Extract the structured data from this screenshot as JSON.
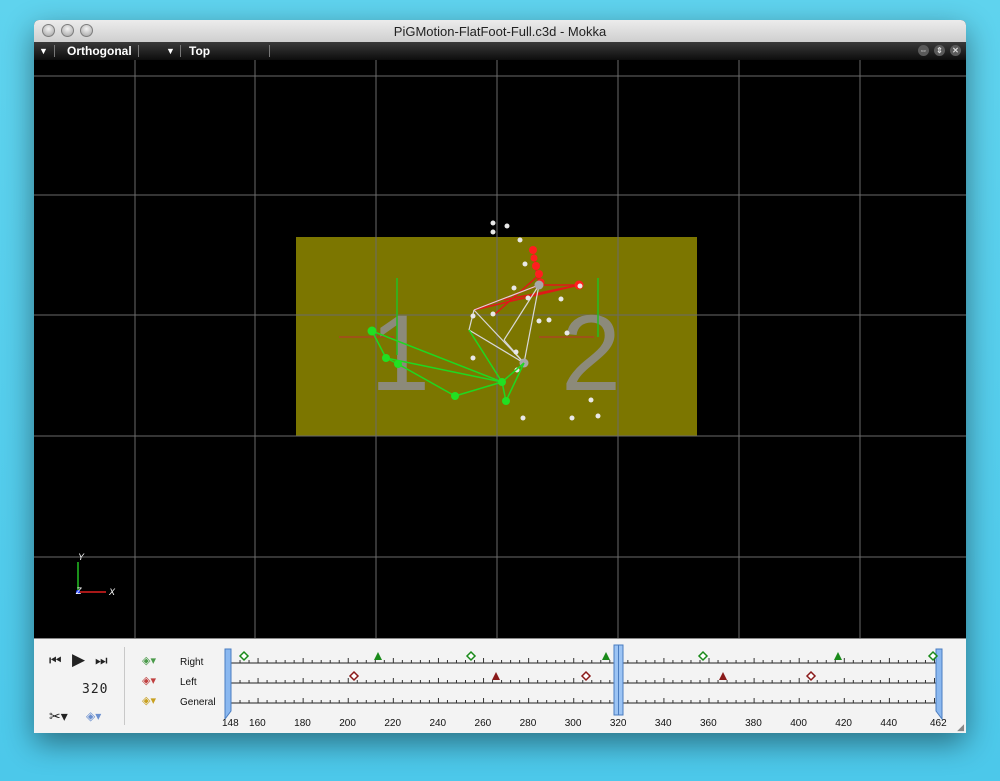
{
  "window": {
    "title": "PiGMotion-FlatFoot-Full.c3d - Mokka"
  },
  "toolbar": {
    "projection": "Orthogonal",
    "view": "Top"
  },
  "viewport": {
    "forceplate_labels": [
      "1",
      "2"
    ],
    "axis_labels": {
      "y": "Y",
      "z": "Z",
      "x": "X"
    }
  },
  "playback": {
    "current_frame": "320"
  },
  "timeline": {
    "tracks": [
      "Right",
      "Left",
      "General"
    ],
    "ticks": [
      "148",
      "160",
      "180",
      "200",
      "220",
      "240",
      "260",
      "280",
      "300",
      "320",
      "340",
      "360",
      "380",
      "400",
      "420",
      "440",
      "462"
    ]
  },
  "colors": {
    "forceplate": "#807a00",
    "right_markers": "#ff2020",
    "left_markers": "#20e020",
    "center_markers": "#cccccc"
  }
}
